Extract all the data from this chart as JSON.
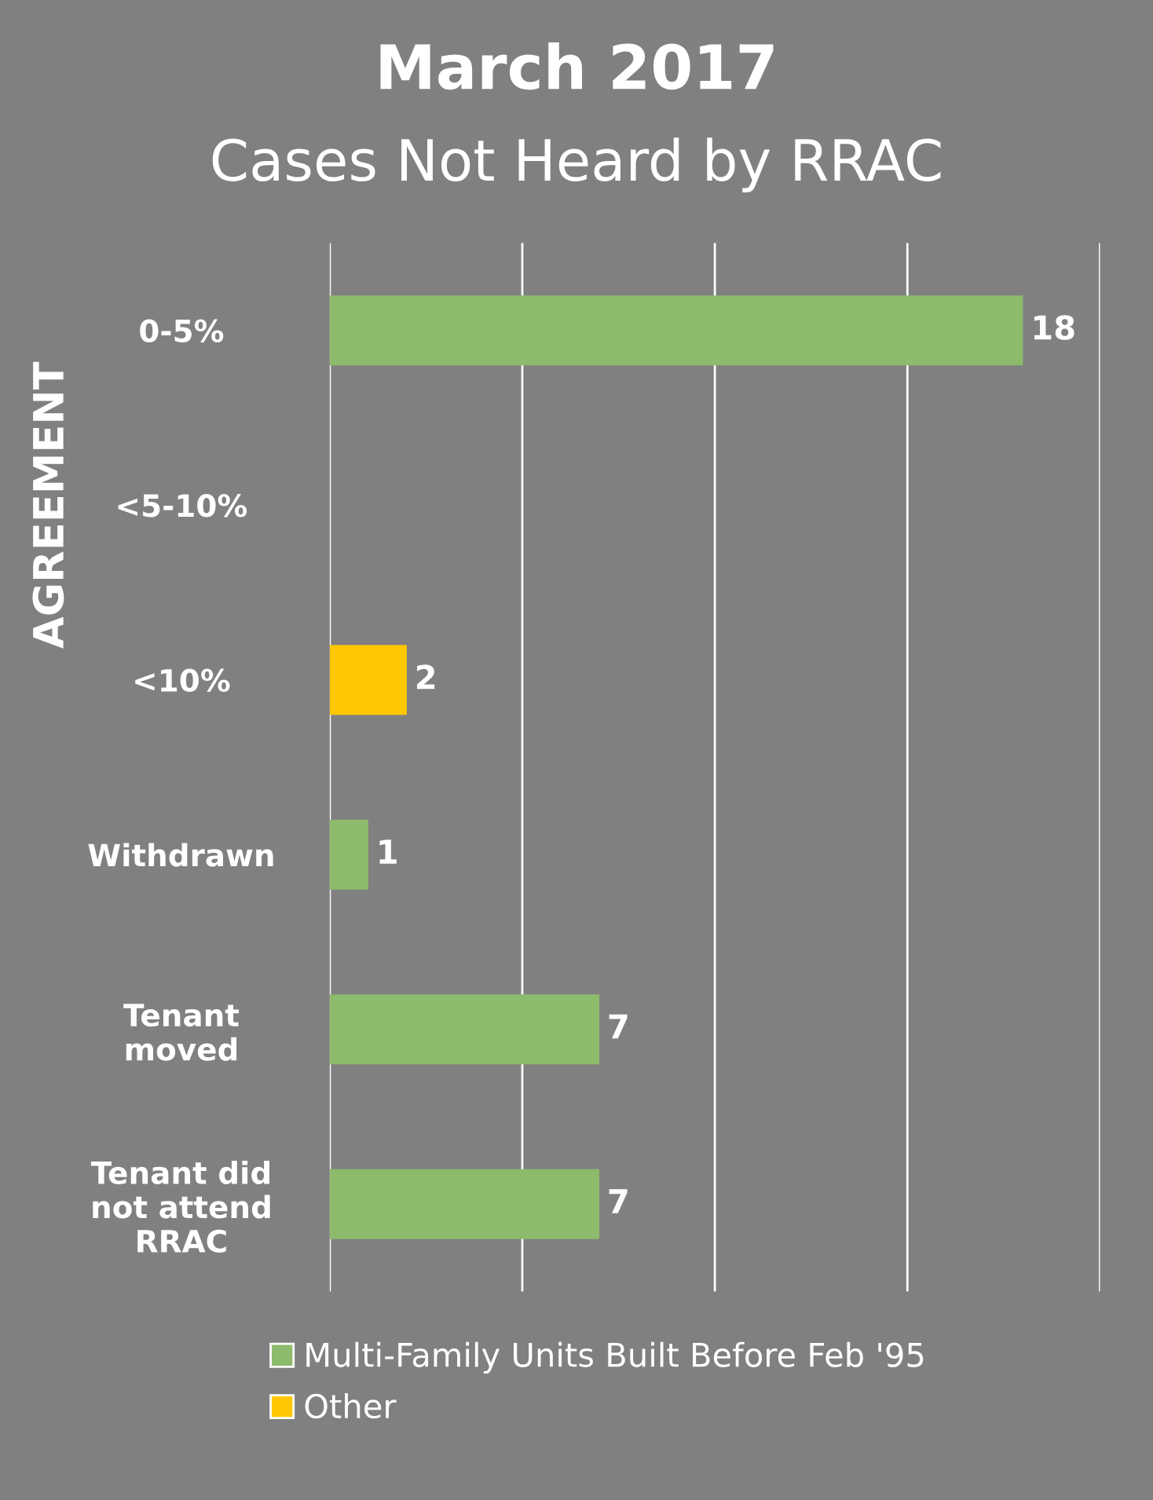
{
  "chart_data": {
    "type": "bar",
    "orientation": "horizontal",
    "title": "March 2017",
    "subtitle": "Cases Not Heard by RRAC",
    "categories": [
      "0-5%",
      "<5-10%",
      "<10%",
      "Withdrawn",
      "Tenant\nmoved",
      "Tenant did\nnot attend\nRRAC"
    ],
    "series": [
      {
        "name": "Multi-Family Units Built Before Feb '95",
        "color": "#8cbb6c",
        "values": [
          18,
          null,
          null,
          1,
          7,
          7
        ]
      },
      {
        "name": "Other",
        "color": "#ffc800",
        "values": [
          null,
          null,
          2,
          null,
          null,
          null
        ]
      }
    ],
    "xlim": [
      0,
      20
    ],
    "xticks": [
      {
        "value": 0,
        "label": null
      },
      {
        "value": 5,
        "label": null
      },
      {
        "value": 10,
        "label": null
      },
      {
        "value": 15,
        "label": null
      },
      {
        "value": 20,
        "label": null
      }
    ],
    "tick_labels": "y",
    "grid": "x",
    "legend": "bottom",
    "data_labels": true,
    "annotations": [
      "AGREEMENT"
    ]
  }
}
